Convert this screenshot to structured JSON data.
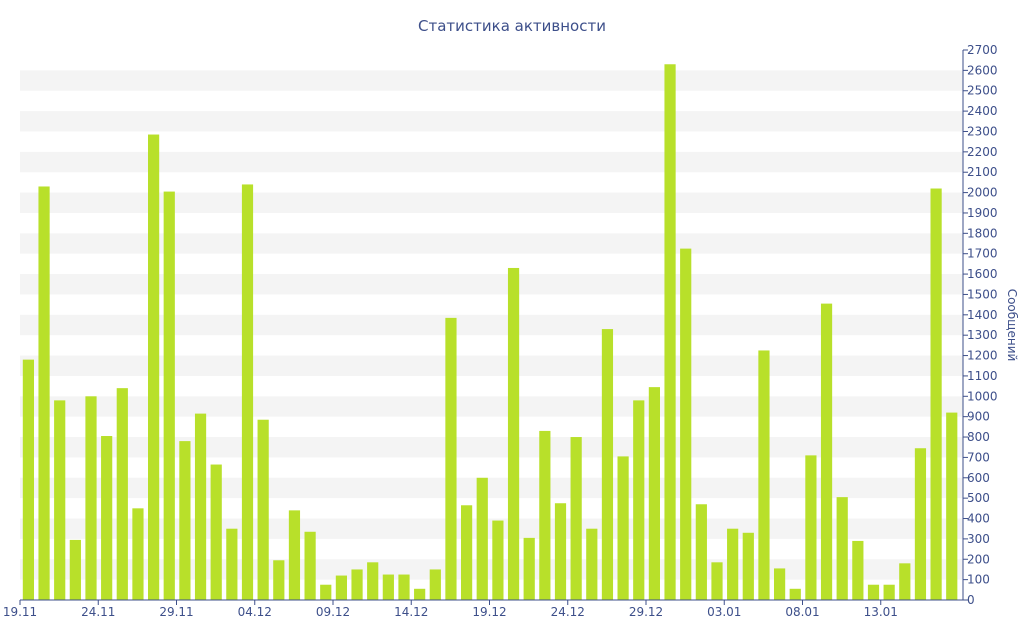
{
  "chart_data": {
    "type": "bar",
    "title": "Статистика активности",
    "xlabel": "",
    "ylabel": "Сообщений",
    "ylim": [
      0,
      2700
    ],
    "y_ticks": [
      0,
      100,
      200,
      300,
      400,
      500,
      600,
      700,
      800,
      900,
      1000,
      1100,
      1200,
      1300,
      1400,
      1500,
      1600,
      1700,
      1800,
      1900,
      2000,
      2100,
      2200,
      2300,
      2400,
      2500,
      2600,
      2700
    ],
    "y_axis_side": "right",
    "grid": "alternating horizontal bands",
    "x_tick_labels": [
      {
        "index": 0,
        "label": "19.11"
      },
      {
        "index": 5,
        "label": "24.11"
      },
      {
        "index": 10,
        "label": "29.11"
      },
      {
        "index": 15,
        "label": "04.12"
      },
      {
        "index": 20,
        "label": "09.12"
      },
      {
        "index": 25,
        "label": "14.12"
      },
      {
        "index": 30,
        "label": "19.12"
      },
      {
        "index": 35,
        "label": "24.12"
      },
      {
        "index": 40,
        "label": "29.12"
      },
      {
        "index": 45,
        "label": "03.01"
      },
      {
        "index": 50,
        "label": "08.01"
      },
      {
        "index": 55,
        "label": "13.01"
      }
    ],
    "values": [
      1180,
      2030,
      980,
      295,
      1000,
      805,
      1040,
      450,
      2285,
      2005,
      780,
      915,
      665,
      350,
      2040,
      885,
      195,
      440,
      335,
      75,
      120,
      150,
      185,
      125,
      125,
      55,
      150,
      1385,
      465,
      600,
      390,
      1630,
      305,
      830,
      475,
      800,
      350,
      1330,
      705,
      980,
      1045,
      2630,
      1725,
      470,
      185,
      350,
      330,
      1225,
      155,
      55,
      710,
      1455,
      505,
      290,
      75,
      75,
      180,
      745,
      2020,
      920
    ],
    "colors": {
      "bar": "#b8e02a",
      "axis": "#3d4f8a",
      "band": "#f4f4f4"
    }
  }
}
